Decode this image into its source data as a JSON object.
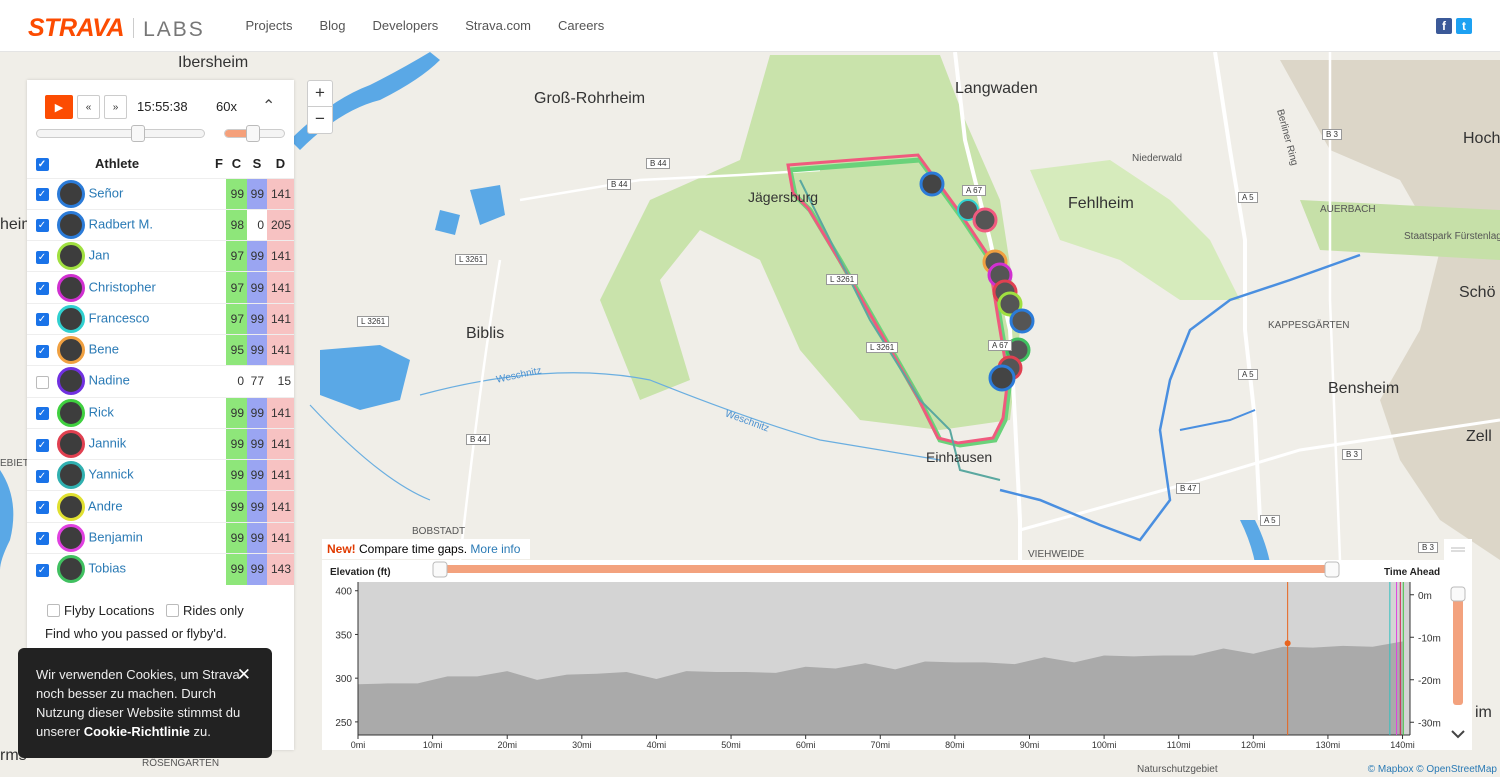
{
  "header": {
    "logo_main": "STRAVA",
    "logo_sub": "LABS",
    "nav": [
      "Projects",
      "Blog",
      "Developers",
      "Strava.com",
      "Careers"
    ],
    "social": {
      "facebook": "f",
      "twitter": "t"
    }
  },
  "map": {
    "places_big": [
      {
        "label": "Ibersheim"
      },
      {
        "label": "Groß-Rohrheim"
      },
      {
        "label": "Langwaden"
      },
      {
        "label": "Jägersburg"
      },
      {
        "label": "Fehlheim"
      },
      {
        "label": "Biblis"
      },
      {
        "label": "Einhausen"
      },
      {
        "label": "Bensheim"
      },
      {
        "label": "Hoch"
      },
      {
        "label": "Schö"
      },
      {
        "label": "Zell"
      },
      {
        "label": "heim"
      },
      {
        "label": "rms"
      },
      {
        "label": "im"
      }
    ],
    "places_small": [
      {
        "label": "Niederwald"
      },
      {
        "label": "AUERBACH"
      },
      {
        "label": "Staatspark Fürstenlag"
      },
      {
        "label": "KAPPESGÄRTEN"
      },
      {
        "label": "BOBSTADT"
      },
      {
        "label": "VIEHWEIDE"
      },
      {
        "label": "Berliner Ring"
      },
      {
        "label": "Weschnitz"
      },
      {
        "label": "Weschnitz"
      },
      {
        "label": "RÖSENGARTEN"
      },
      {
        "label": "Naturschutzgebiet"
      },
      {
        "label": "EBIET"
      }
    ],
    "roads": [
      {
        "label": "B 44"
      },
      {
        "label": "B 44"
      },
      {
        "label": "L 3261"
      },
      {
        "label": "L 3261"
      },
      {
        "label": "L 3261"
      },
      {
        "label": "L 3261"
      },
      {
        "label": "A 67"
      },
      {
        "label": "A 67"
      },
      {
        "label": "B 44"
      },
      {
        "label": "B 3"
      },
      {
        "label": "A 5"
      },
      {
        "label": "A 5"
      },
      {
        "label": "B 3"
      },
      {
        "label": "B 47"
      },
      {
        "label": "A 5"
      },
      {
        "label": "B 3"
      }
    ],
    "zoom_in": "+",
    "zoom_out": "−",
    "attribution": "© Mapbox © OpenStreetMap",
    "colors": {
      "route_red": "#f05a7e",
      "route_blue": "#4a8fe0",
      "route_green": "#6ad27a",
      "water": "#5aa8e6"
    }
  },
  "playback": {
    "play_icon": "▶",
    "rewind_label": "«",
    "forward_label": "»",
    "time": "15:55:38",
    "speed": "60x",
    "collapse_icon": "⌃",
    "position_fraction": 0.56,
    "speed_fraction": 0.45
  },
  "table": {
    "headers": {
      "athlete": "Athlete",
      "f": "F",
      "c": "C",
      "s": "S",
      "d": "D"
    },
    "rows": [
      {
        "name": "Señor",
        "checked": true,
        "c": "99",
        "s": "99",
        "d": "141",
        "ring": "#2b7bd8"
      },
      {
        "name": "Radbert M.",
        "checked": true,
        "c": "98",
        "s": "0",
        "d": "205",
        "ring": "#2b7bd8"
      },
      {
        "name": "Jan",
        "checked": true,
        "c": "97",
        "s": "99",
        "d": "141",
        "ring": "#a0e040"
      },
      {
        "name": "Christopher",
        "checked": true,
        "c": "97",
        "s": "99",
        "d": "141",
        "ring": "#d030d0"
      },
      {
        "name": "Francesco",
        "checked": true,
        "c": "97",
        "s": "99",
        "d": "141",
        "ring": "#30d0d0"
      },
      {
        "name": "Bene",
        "checked": true,
        "c": "95",
        "s": "99",
        "d": "141",
        "ring": "#f0a040"
      },
      {
        "name": "Nadine",
        "checked": false,
        "c": "0",
        "s": "77",
        "d": "15",
        "ring": "#7030e0"
      },
      {
        "name": "Rick",
        "checked": true,
        "c": "99",
        "s": "99",
        "d": "141",
        "ring": "#40d040"
      },
      {
        "name": "Jannik",
        "checked": true,
        "c": "99",
        "s": "99",
        "d": "141",
        "ring": "#e04050"
      },
      {
        "name": "Yannick",
        "checked": true,
        "c": "99",
        "s": "99",
        "d": "141",
        "ring": "#30b0b0"
      },
      {
        "name": "Andre",
        "checked": true,
        "c": "99",
        "s": "99",
        "d": "141",
        "ring": "#e0e030"
      },
      {
        "name": "Benjamin",
        "checked": true,
        "c": "99",
        "s": "99",
        "d": "141",
        "ring": "#e040e0"
      },
      {
        "name": "Tobias",
        "checked": true,
        "c": "99",
        "s": "99",
        "d": "143",
        "ring": "#40c060"
      }
    ]
  },
  "filters": {
    "flyby": "Flyby Locations",
    "rides_only": "Rides only",
    "find_text": "Find who you passed or flyby'd."
  },
  "cookie": {
    "text": "Wir verwenden Cookies, um Strava noch besser zu machen. Durch Nutzung dieser Website stimmst du unserer ",
    "link": "Cookie-Richtlinie",
    "suffix": " zu.",
    "close_icon": "✕"
  },
  "news": {
    "new_label": "New!",
    "text": "Compare time gaps.",
    "link": "More info"
  },
  "chart_data": {
    "type": "area",
    "title": "",
    "ylabel": "Elevation (ft)",
    "y2label": "Time Ahead",
    "xlabel": "",
    "x_ticks": [
      "0mi",
      "10mi",
      "20mi",
      "30mi",
      "40mi",
      "50mi",
      "60mi",
      "70mi",
      "80mi",
      "90mi",
      "100mi",
      "110mi",
      "120mi",
      "130mi",
      "140mi"
    ],
    "x_range": [
      0,
      141
    ],
    "y_ticks": [
      "400",
      "350",
      "300",
      "250"
    ],
    "ylim": [
      235,
      410
    ],
    "y2_ticks": [
      "0m",
      "-10m",
      "-20m",
      "-30m"
    ],
    "y2lim": [
      -33,
      3
    ],
    "series": [
      {
        "x": [
          0,
          4,
          8,
          12,
          16,
          20,
          24,
          28,
          32,
          36,
          40,
          44,
          48,
          52,
          56,
          60,
          64,
          68,
          72,
          76,
          80,
          84,
          88,
          92,
          96,
          100,
          104,
          108,
          112,
          116,
          120,
          124,
          128,
          132,
          136,
          140
        ],
        "values": [
          293,
          290,
          294,
          298,
          302,
          304,
          298,
          300,
          305,
          303,
          299,
          304,
          307,
          303,
          306,
          309,
          311,
          313,
          310,
          315,
          318,
          314,
          316,
          320,
          318,
          322,
          325,
          322,
          326,
          330,
          328,
          332,
          335,
          333,
          336,
          338
        ]
      }
    ],
    "markers": [
      {
        "x": 124.6,
        "y": 340,
        "color": "#e8641e"
      }
    ],
    "guide_lines": [
      {
        "x": 124.6,
        "color": "#e8641e"
      },
      {
        "x": 138.3,
        "color": "#30c0c0"
      },
      {
        "x": 139.2,
        "color": "#e040e0"
      },
      {
        "x": 139.7,
        "color": "#d02050"
      },
      {
        "x": 140.1,
        "color": "#40c040"
      }
    ],
    "range_start_fraction": 0.0,
    "range_end_fraction": 1.0
  }
}
